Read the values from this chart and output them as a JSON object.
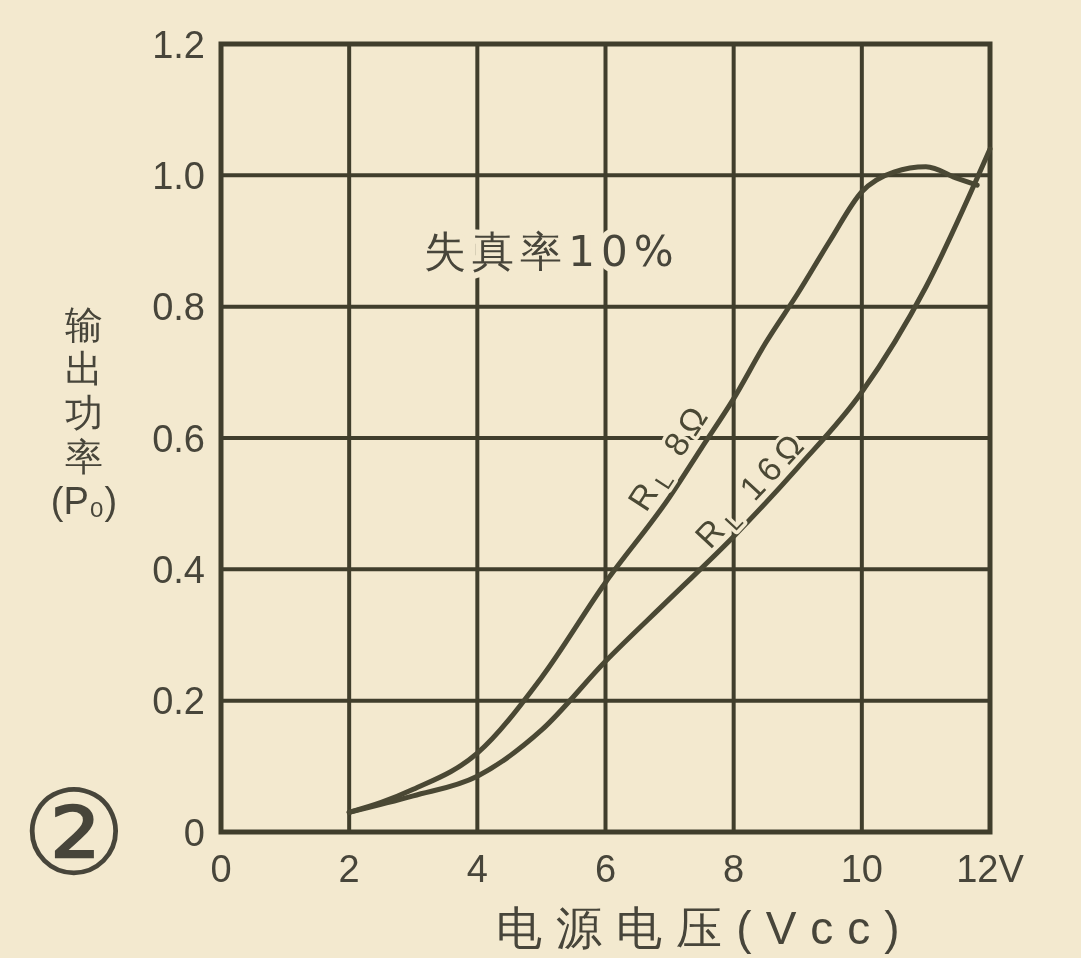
{
  "chart_data": {
    "type": "line",
    "xlabel": "电源电压(Vcc)",
    "ylabel": "输出功率(P₀)",
    "annotations": [
      "失真率10%",
      "②"
    ],
    "xlim": [
      0,
      12
    ],
    "xticks": [
      0,
      2,
      4,
      6,
      8,
      10,
      {
        "value": 12,
        "label": "12V"
      }
    ],
    "ylim": [
      0,
      1.2
    ],
    "yticks": [
      0,
      0.2,
      0.4,
      0.6,
      0.8,
      {
        "value": 1,
        "label": "1.0"
      },
      1.2
    ],
    "grid": true,
    "legend": false,
    "series": [
      {
        "name": "R$_{L}$ 8Ω",
        "color": "#4a4834",
        "x": [
          2,
          2.5,
          3,
          4,
          5,
          6,
          7,
          7.5,
          8,
          8.5,
          9,
          9.5,
          10,
          10.5,
          11,
          11.5,
          11.8
        ],
        "values": [
          0.03,
          0.045,
          0.065,
          0.12,
          0.235,
          0.38,
          0.51,
          0.585,
          0.66,
          0.745,
          0.82,
          0.9,
          0.975,
          1.005,
          1.013,
          0.995,
          0.985
        ]
      },
      {
        "name": "R$_{L}$ 16Ω",
        "color": "#4a4834",
        "x": [
          2,
          3,
          4,
          5,
          6,
          7,
          8,
          9,
          10,
          11,
          12
        ],
        "values": [
          0.03,
          0.055,
          0.085,
          0.155,
          0.26,
          0.355,
          0.45,
          0.555,
          0.67,
          0.83,
          1.04
        ]
      }
    ]
  }
}
